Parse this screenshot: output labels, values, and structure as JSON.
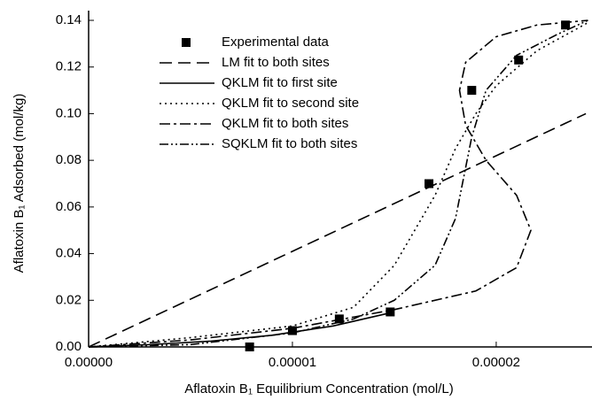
{
  "chart_data": {
    "type": "scatter-lines",
    "xlabel": "Aflatoxin B₁ Equilibrium Concentration (mol/L)",
    "ylabel": "Aflatoxin B₁ Adsorbed (mol/kg)",
    "xlim": [
      0,
      2.47e-05
    ],
    "ylim": [
      0,
      0.14
    ],
    "xticks": [
      {
        "value": 0,
        "label": "0.00000"
      },
      {
        "value": 1e-05,
        "label": "0.00001"
      },
      {
        "value": 2e-05,
        "label": "0.00002"
      }
    ],
    "yticks": [
      {
        "value": 0,
        "label": "0.00"
      },
      {
        "value": 0.02,
        "label": "0.02"
      },
      {
        "value": 0.04,
        "label": "0.04"
      },
      {
        "value": 0.06,
        "label": "0.06"
      },
      {
        "value": 0.08,
        "label": "0.08"
      },
      {
        "value": 0.1,
        "label": "0.10"
      },
      {
        "value": 0.12,
        "label": "0.12"
      },
      {
        "value": 0.14,
        "label": "0.14"
      }
    ],
    "series": [
      {
        "name": "Experimental data",
        "mode": "markers",
        "color": "#000000",
        "x": [
          7.9e-06,
          1e-05,
          1.23e-05,
          1.48e-05,
          1.67e-05,
          1.88e-05,
          2.11e-05,
          2.34e-05
        ],
        "values": [
          0,
          0.007,
          0.012,
          0.015,
          0.07,
          0.11,
          0.123,
          0.138
        ]
      },
      {
        "name": "LM fit to both sites",
        "mode": "line",
        "color": "#000000",
        "dash": "14,7",
        "x": [
          0,
          2.44e-05
        ],
        "values": [
          0,
          0.1
        ]
      },
      {
        "name": "QKLM fit to first site",
        "mode": "line",
        "color": "#000000",
        "dash": "none",
        "x": [
          0,
          3e-06,
          6e-06,
          9e-06,
          1.2e-05,
          1.5e-05
        ],
        "values": [
          0,
          0.001,
          0.0025,
          0.005,
          0.009,
          0.015
        ]
      },
      {
        "name": "QKLM fit to second site",
        "mode": "line",
        "color": "#000000",
        "dash": "2,4",
        "x": [
          0,
          5e-06,
          1e-05,
          1.3e-05,
          1.5e-05,
          1.7e-05,
          1.8e-05,
          1.9e-05,
          2e-05,
          2.2e-05,
          2.45e-05
        ],
        "values": [
          0,
          0.004,
          0.009,
          0.017,
          0.035,
          0.065,
          0.085,
          0.1,
          0.112,
          0.127,
          0.139
        ]
      },
      {
        "name": "QKLM fit to both sites",
        "mode": "line",
        "color": "#000000",
        "dash": "12,4,3,4",
        "x": [
          0,
          5e-06,
          1e-05,
          1.5e-05,
          1.9e-05,
          2.1e-05,
          2.17e-05,
          2.1e-05,
          1.95e-05,
          1.85e-05,
          1.82e-05,
          1.85e-05,
          2e-05,
          2.2e-05,
          2.45e-05
        ],
        "values": [
          0,
          0.003,
          0.008,
          0.016,
          0.024,
          0.034,
          0.05,
          0.065,
          0.08,
          0.095,
          0.11,
          0.122,
          0.133,
          0.138,
          0.14
        ]
      },
      {
        "name": "SQKLM fit to both sites",
        "mode": "line",
        "color": "#000000",
        "dash": "10,3,2,3,2,3",
        "x": [
          0,
          5e-06,
          1e-05,
          1.3e-05,
          1.5e-05,
          1.7e-05,
          1.8e-05,
          1.88e-05,
          1.95e-05,
          2.1e-05,
          2.3e-05,
          2.45e-05
        ],
        "values": [
          0,
          0.001,
          0.006,
          0.012,
          0.02,
          0.035,
          0.055,
          0.09,
          0.11,
          0.125,
          0.134,
          0.14
        ]
      }
    ],
    "legend": "upper-left"
  }
}
